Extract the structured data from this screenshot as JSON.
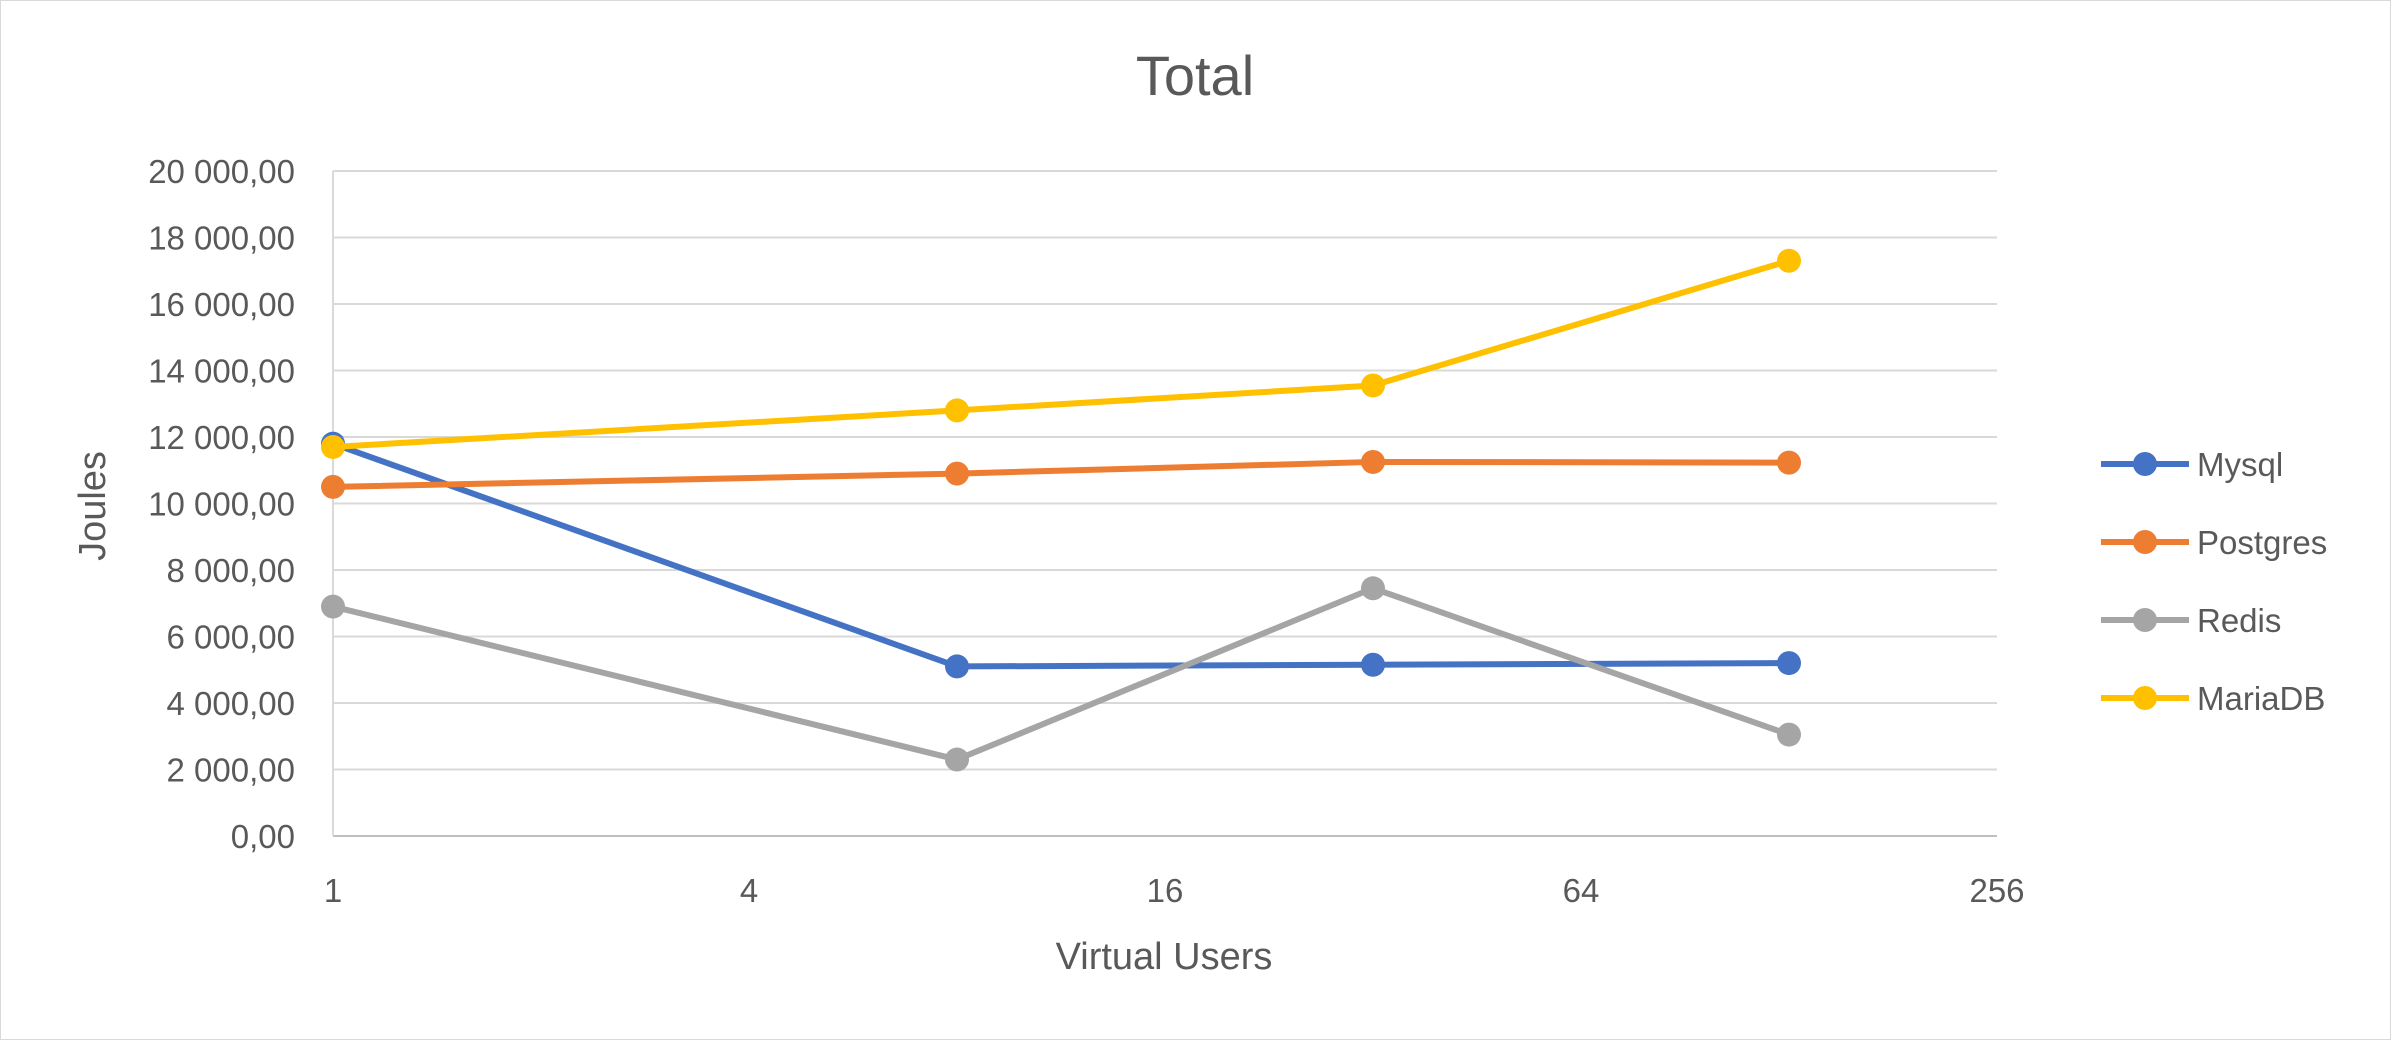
{
  "chart_data": {
    "type": "line",
    "title": "Total",
    "xlabel": "Virtual Users",
    "ylabel": "Joules",
    "x_scale": "log2",
    "x_ticks": [
      "1",
      "4",
      "16",
      "64",
      "256"
    ],
    "x_tick_values": [
      1,
      4,
      16,
      64,
      256
    ],
    "xlim": [
      1,
      256
    ],
    "y_ticks": [
      "0,00",
      "2 000,00",
      "4 000,00",
      "6 000,00",
      "8 000,00",
      "10 000,00",
      "12 000,00",
      "14 000,00",
      "16 000,00",
      "18 000,00",
      "20 000,00"
    ],
    "y_tick_values": [
      0,
      2000,
      4000,
      6000,
      8000,
      10000,
      12000,
      14000,
      16000,
      18000,
      20000
    ],
    "ylim": [
      0,
      20000
    ],
    "grid": true,
    "legend_position": "right",
    "x": [
      1,
      8,
      32,
      128
    ],
    "series": [
      {
        "name": "Mysql",
        "color": "#4472C4",
        "values": [
          11800,
          5100,
          5150,
          5200
        ]
      },
      {
        "name": "Postgres",
        "color": "#ED7D31",
        "values": [
          10500,
          10900,
          11250,
          11230
        ]
      },
      {
        "name": "Redis",
        "color": "#A5A5A5",
        "values": [
          6900,
          2300,
          7450,
          3050
        ]
      },
      {
        "name": "MariaDB",
        "color": "#FFC000",
        "values": [
          11700,
          12800,
          13550,
          17300
        ]
      }
    ]
  }
}
